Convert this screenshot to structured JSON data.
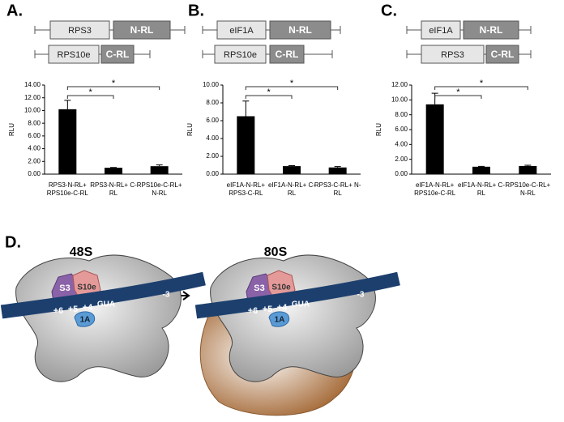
{
  "panel_labels": [
    "A.",
    "B.",
    "C.",
    "D."
  ],
  "constructs": [
    [
      [
        "RPS3",
        "N-RL"
      ],
      [
        "RPS10e",
        "C-RL"
      ]
    ],
    [
      [
        "eIF1A",
        "N-RL"
      ],
      [
        "RPS10e",
        "C-RL"
      ]
    ],
    [
      [
        "eIF1A",
        "N-RL"
      ],
      [
        "RPS3",
        "C-RL"
      ]
    ]
  ],
  "chart_data": [
    {
      "type": "bar",
      "ylabel": "RLU",
      "color": "#000000",
      "categories": [
        "RPS3-N-RL+ RPS10e-C-RL",
        "RPS3-N-RL+ C-RL",
        "RPS10e-C-RL+ N-RL"
      ],
      "values": [
        10.2,
        1.0,
        1.25
      ],
      "errors": [
        1.4,
        0.05,
        0.2
      ],
      "ylim": [
        0,
        14
      ],
      "yticks": [
        {
          "value": 0,
          "label": "0.00"
        },
        {
          "value": 2,
          "label": "2.00"
        },
        {
          "value": 4,
          "label": "4.00"
        },
        {
          "value": 6,
          "label": "6.00"
        },
        {
          "value": 8,
          "label": "8.00"
        },
        {
          "value": 10,
          "label": "10.00"
        },
        {
          "value": 12,
          "label": "12.00"
        },
        {
          "value": 14,
          "label": "14.00"
        }
      ],
      "annotations": [
        "*",
        "*"
      ]
    },
    {
      "type": "bar",
      "ylabel": "RLU",
      "color": "#000000",
      "categories": [
        "eIF1A-N-RL+ RPS3-C-RL",
        "eIF1A-N-RL+ C-RL",
        "RPS3-C-RL+ N-RL"
      ],
      "values": [
        6.5,
        0.9,
        0.75
      ],
      "errors": [
        1.7,
        0.05,
        0.1
      ],
      "ylim": [
        0,
        10
      ],
      "yticks": [
        {
          "value": 0,
          "label": "0.00"
        },
        {
          "value": 2,
          "label": "2.00"
        },
        {
          "value": 4,
          "label": "4.00"
        },
        {
          "value": 6,
          "label": "6.00"
        },
        {
          "value": 8,
          "label": "8.00"
        },
        {
          "value": 10,
          "label": "10.00"
        }
      ],
      "annotations": [
        "*",
        "*"
      ]
    },
    {
      "type": "bar",
      "ylabel": "RLU",
      "color": "#000000",
      "categories": [
        "eIF1A-N-RL+ RPS10e-C-RL",
        "eIF1A-N-RL+ C-RL",
        "RPS10e-C-RL+ N-RL"
      ],
      "values": [
        9.4,
        1.0,
        1.1
      ],
      "errors": [
        1.5,
        0.05,
        0.1
      ],
      "ylim": [
        0,
        12
      ],
      "yticks": [
        {
          "value": 0,
          "label": "0.00"
        },
        {
          "value": 2,
          "label": "2.00"
        },
        {
          "value": 4,
          "label": "4.00"
        },
        {
          "value": 6,
          "label": "6.00"
        },
        {
          "value": 8,
          "label": "8.00"
        },
        {
          "value": 10,
          "label": "10.00"
        },
        {
          "value": 12,
          "label": "12.00"
        }
      ],
      "annotations": [
        "*",
        "*"
      ]
    }
  ],
  "diagram": {
    "states": [
      {
        "title": "48S",
        "labels": [
          "S3",
          "S10e",
          "+6",
          "+5",
          "+4",
          "GUA",
          "-3",
          "1A"
        ]
      },
      {
        "title": "80S",
        "labels": [
          "S3",
          "S10e",
          "+6",
          "+5",
          "+4",
          "GUA",
          "-3",
          "1A"
        ]
      }
    ]
  }
}
